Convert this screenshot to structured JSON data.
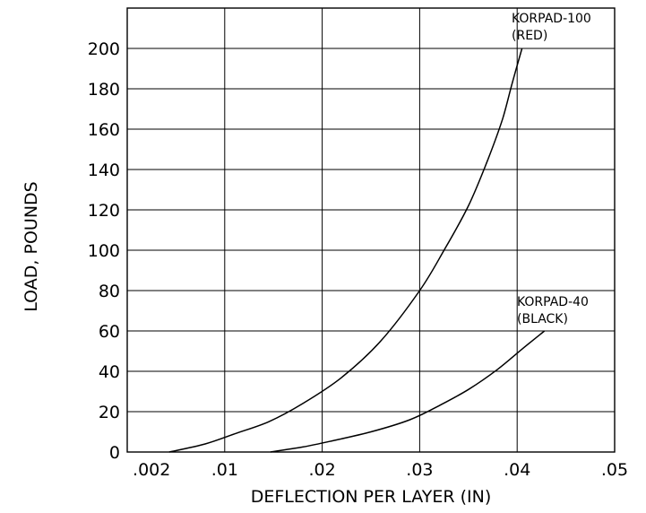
{
  "chart_data": {
    "type": "line",
    "xlabel": "DEFLECTION PER LAYER (IN)",
    "ylabel": "LOAD, POUNDS",
    "xlim": [
      0.0,
      0.05
    ],
    "ylim": [
      0,
      220
    ],
    "x_ticks": [
      {
        "value": 0.0025,
        "label": ".002"
      },
      {
        "value": 0.01,
        "label": ".01"
      },
      {
        "value": 0.02,
        "label": ".02"
      },
      {
        "value": 0.03,
        "label": ".03"
      },
      {
        "value": 0.04,
        "label": ".04"
      },
      {
        "value": 0.05,
        "label": ".05"
      }
    ],
    "x_gridlines": [
      0.01,
      0.02,
      0.03,
      0.04
    ],
    "y_ticks": [
      {
        "value": 0,
        "label": "0"
      },
      {
        "value": 20,
        "label": "20"
      },
      {
        "value": 40,
        "label": "40"
      },
      {
        "value": 60,
        "label": "60"
      },
      {
        "value": 80,
        "label": "80"
      },
      {
        "value": 100,
        "label": "100"
      },
      {
        "value": 120,
        "label": "120"
      },
      {
        "value": 140,
        "label": "140"
      },
      {
        "value": 160,
        "label": "160"
      },
      {
        "value": 180,
        "label": "180"
      },
      {
        "value": 200,
        "label": "200"
      }
    ],
    "grid": true,
    "series": [
      {
        "name": "KORPAD-100 (RED)",
        "label_lines": [
          "KORPAD-100",
          "(RED)"
        ],
        "x": [
          0.0043,
          0.008,
          0.011,
          0.0145,
          0.018,
          0.022,
          0.026,
          0.03,
          0.0325,
          0.035,
          0.037,
          0.0385,
          0.0395,
          0.0405
        ],
        "y": [
          0,
          4,
          9,
          15,
          24,
          37,
          55,
          80,
          100,
          122,
          145,
          165,
          183,
          200
        ]
      },
      {
        "name": "KORPAD-40 (BLACK)",
        "label_lines": [
          "KORPAD-40",
          "(BLACK)"
        ],
        "x": [
          0.0147,
          0.018,
          0.021,
          0.025,
          0.029,
          0.032,
          0.035,
          0.038,
          0.0405,
          0.0428
        ],
        "y": [
          0,
          2.5,
          5.5,
          10,
          16,
          23,
          31,
          41,
          51,
          60
        ]
      }
    ]
  }
}
